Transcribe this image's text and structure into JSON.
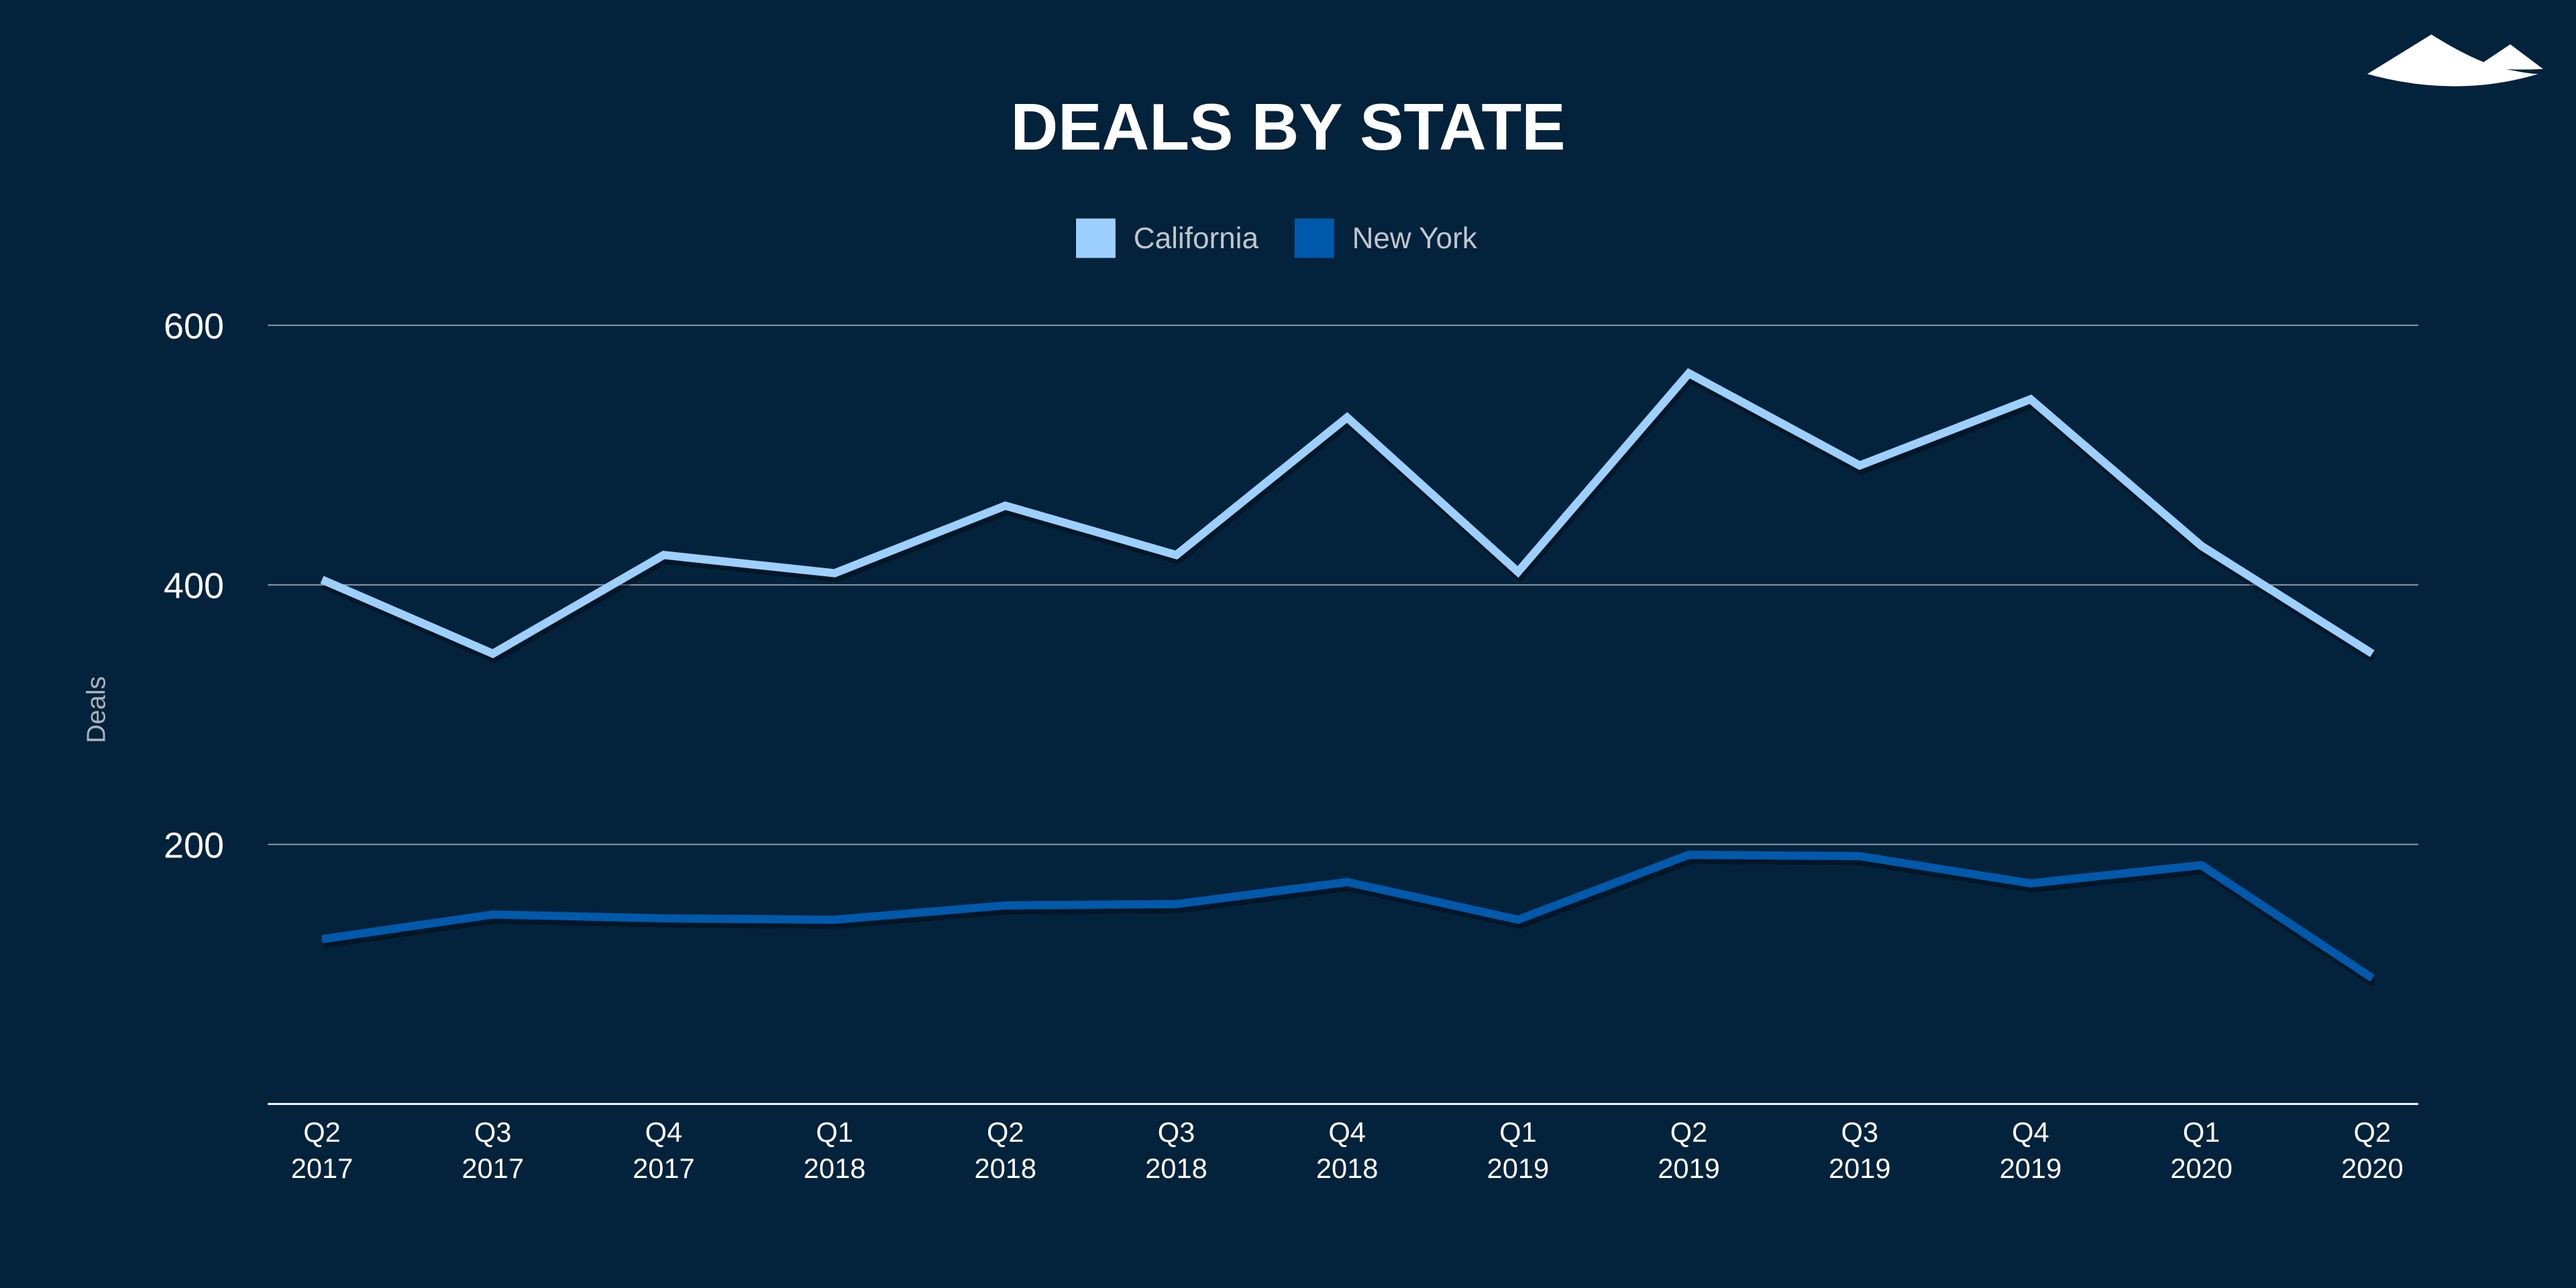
{
  "chart_data": {
    "type": "line",
    "title": "DEALS BY STATE",
    "ylabel": "Deals",
    "xlabel": "",
    "ylim": [
      0,
      600
    ],
    "yticks": [
      200,
      400,
      600
    ],
    "grid": true,
    "legend_position": "top-center",
    "categories": [
      [
        "Q2",
        "2017"
      ],
      [
        "Q3",
        "2017"
      ],
      [
        "Q4",
        "2017"
      ],
      [
        "Q1",
        "2018"
      ],
      [
        "Q2",
        "2018"
      ],
      [
        "Q3",
        "2018"
      ],
      [
        "Q4",
        "2018"
      ],
      [
        "Q1",
        "2019"
      ],
      [
        "Q2",
        "2019"
      ],
      [
        "Q3",
        "2019"
      ],
      [
        "Q4",
        "2019"
      ],
      [
        "Q1",
        "2020"
      ],
      [
        "Q2",
        "2020"
      ]
    ],
    "series": [
      {
        "name": "California",
        "color": "#9dd0ff",
        "values": [
          404,
          347,
          423,
          409,
          461,
          423,
          529,
          410,
          563,
          492,
          543,
          430,
          347
        ]
      },
      {
        "name": "New York",
        "color": "#0059aa",
        "values": [
          127,
          146,
          143,
          142,
          153,
          154,
          171,
          142,
          192,
          191,
          170,
          184,
          97
        ]
      }
    ]
  },
  "colors": {
    "background": "#03223b",
    "grid": "#8a99a8"
  },
  "logo": {
    "icon": "mountains-logo"
  }
}
